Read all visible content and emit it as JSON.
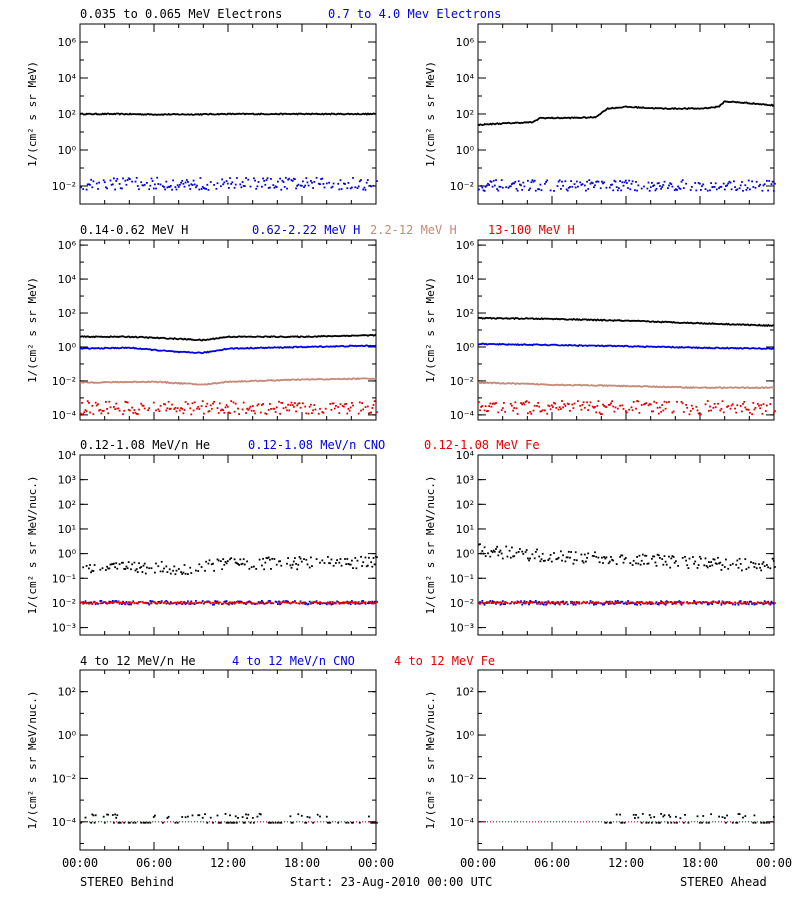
{
  "colors": {
    "black": "#000000",
    "blue": "#0000dd",
    "tan": "#c58a78",
    "red": "#e00000"
  },
  "footer": {
    "left": "STEREO Behind",
    "center": "Start: 23-Aug-2010 00:00 UTC",
    "right": "STEREO Ahead",
    "time_ticks": [
      "00:00",
      "06:00",
      "12:00",
      "18:00",
      "00:00"
    ]
  },
  "rows": [
    {
      "legend": [
        {
          "text": "0.035 to 0.065 MeV Electrons",
          "color": "#000000"
        },
        {
          "text": "0.7 to 4.0 Mev Electrons",
          "color": "#0000dd"
        }
      ],
      "ylabel_left": "1/(cm² s sr MeV)",
      "ylabel_right": "1/(cm² s sr MeV)",
      "y_ticks": [
        "10⁻²",
        "10⁰",
        "10²",
        "10⁴",
        "10⁶"
      ]
    },
    {
      "legend": [
        {
          "text": "0.14-0.62 MeV H",
          "color": "#000000"
        },
        {
          "text": "0.62-2.22 MeV H",
          "color": "#0000dd"
        },
        {
          "text": "2.2-12 MeV H",
          "color": "#c58a78"
        },
        {
          "text": "13-100 MeV H",
          "color": "#e00000"
        }
      ],
      "ylabel_left": "1/(cm² s sr MeV)",
      "ylabel_right": "1/(cm² s sr MeV)",
      "y_ticks": [
        "10⁻⁴",
        "10⁻²",
        "10⁰",
        "10²",
        "10⁴",
        "10⁶"
      ]
    },
    {
      "legend": [
        {
          "text": "0.12-1.08 MeV/n He",
          "color": "#000000"
        },
        {
          "text": "0.12-1.08 MeV/n CNO",
          "color": "#0000dd"
        },
        {
          "text": "0.12-1.08 MeV Fe",
          "color": "#e00000"
        }
      ],
      "ylabel_left": "1/(cm² s sr MeV/nuc.)",
      "ylabel_right": "1/(cm² s sr MeV/nuc.)",
      "y_ticks": [
        "10⁻³",
        "10⁻²",
        "10⁻¹",
        "10⁰",
        "10¹",
        "10²",
        "10³",
        "10⁴"
      ]
    },
    {
      "legend": [
        {
          "text": "4 to 12 MeV/n He",
          "color": "#000000"
        },
        {
          "text": "4 to 12 MeV/n CNO",
          "color": "#0000dd"
        },
        {
          "text": "4 to 12 MeV Fe",
          "color": "#e00000"
        }
      ],
      "ylabel_left": "1/(cm² s sr MeV/nuc.)",
      "ylabel_right": "1/(cm² s sr MeV/nuc.)",
      "y_ticks": [
        "10⁻⁴",
        "10⁻²",
        "10⁰",
        "10²"
      ]
    }
  ],
  "chart_data": [
    {
      "type": "scatter",
      "panel": "electrons-behind",
      "ylog": true,
      "ylim": [
        0.001,
        10000000
      ],
      "xlim": [
        0,
        24
      ],
      "series": [
        {
          "name": "0.035 to 0.065 MeV Electrons",
          "color": "#000000",
          "mode": "line",
          "points": [
            [
              0,
              100
            ],
            [
              3,
              100
            ],
            [
              6,
              95
            ],
            [
              9,
              95
            ],
            [
              12,
              100
            ],
            [
              15,
              100
            ],
            [
              18,
              100
            ],
            [
              21,
              100
            ],
            [
              24,
              100
            ]
          ]
        },
        {
          "name": "0.7 to 4.0 Mev Electrons",
          "color": "#0000dd",
          "mode": "band",
          "points": [
            [
              0,
              0.015
            ],
            [
              6,
              0.015
            ],
            [
              12,
              0.015
            ],
            [
              18,
              0.015
            ],
            [
              24,
              0.015
            ]
          ],
          "spread": 2.2
        }
      ]
    },
    {
      "type": "scatter",
      "panel": "electrons-ahead",
      "ylog": true,
      "ylim": [
        0.001,
        10000000
      ],
      "xlim": [
        0,
        24
      ],
      "series": [
        {
          "name": "0.035 to 0.065 MeV Electrons",
          "color": "#000000",
          "mode": "line",
          "points": [
            [
              0,
              25
            ],
            [
              2,
              30
            ],
            [
              4.5,
              35
            ],
            [
              5,
              60
            ],
            [
              7,
              60
            ],
            [
              9.5,
              65
            ],
            [
              10.5,
              200
            ],
            [
              12,
              250
            ],
            [
              15,
              200
            ],
            [
              18,
              200
            ],
            [
              19.5,
              250
            ],
            [
              20,
              500
            ],
            [
              22,
              400
            ],
            [
              24,
              300
            ]
          ]
        },
        {
          "name": "0.7 to 4.0 Mev Electrons",
          "color": "#0000dd",
          "mode": "band",
          "points": [
            [
              0,
              0.012
            ],
            [
              6,
              0.012
            ],
            [
              12,
              0.012
            ],
            [
              18,
              0.012
            ],
            [
              24,
              0.012
            ]
          ],
          "spread": 2.0
        }
      ]
    },
    {
      "type": "scatter",
      "panel": "protons-behind",
      "ylog": true,
      "ylim": [
        5e-05,
        2000000
      ],
      "xlim": [
        0,
        24
      ],
      "series": [
        {
          "name": "0.14-0.62 MeV H",
          "color": "#000000",
          "mode": "line",
          "points": [
            [
              0,
              4
            ],
            [
              4,
              4
            ],
            [
              8,
              3
            ],
            [
              10,
              2.5
            ],
            [
              12,
              4
            ],
            [
              18,
              4
            ],
            [
              24,
              5
            ]
          ]
        },
        {
          "name": "0.62-2.22 MeV H",
          "color": "#0000dd",
          "mode": "line",
          "points": [
            [
              0,
              0.8
            ],
            [
              4,
              0.9
            ],
            [
              8,
              0.5
            ],
            [
              10,
              0.45
            ],
            [
              12,
              0.8
            ],
            [
              18,
              1
            ],
            [
              24,
              1.2
            ]
          ]
        },
        {
          "name": "2.2-12 MeV H",
          "color": "#c58a78",
          "mode": "line",
          "points": [
            [
              0,
              0.008
            ],
            [
              6,
              0.009
            ],
            [
              10,
              0.006
            ],
            [
              12,
              0.009
            ],
            [
              18,
              0.012
            ],
            [
              24,
              0.014
            ]
          ]
        },
        {
          "name": "13-100 MeV H",
          "color": "#e00000",
          "mode": "band",
          "points": [
            [
              0,
              0.0003
            ],
            [
              12,
              0.0003
            ],
            [
              24,
              0.0003
            ]
          ],
          "spread": 2.5
        }
      ]
    },
    {
      "type": "scatter",
      "panel": "protons-ahead",
      "ylog": true,
      "ylim": [
        5e-05,
        2000000
      ],
      "xlim": [
        0,
        24
      ],
      "series": [
        {
          "name": "0.14-0.62 MeV H",
          "color": "#000000",
          "mode": "line",
          "points": [
            [
              0,
              50
            ],
            [
              6,
              45
            ],
            [
              12,
              35
            ],
            [
              18,
              25
            ],
            [
              24,
              18
            ]
          ]
        },
        {
          "name": "0.62-2.22 MeV H",
          "color": "#0000dd",
          "mode": "line",
          "points": [
            [
              0,
              1.5
            ],
            [
              6,
              1.3
            ],
            [
              12,
              1.1
            ],
            [
              18,
              0.9
            ],
            [
              24,
              0.8
            ]
          ]
        },
        {
          "name": "2.2-12 MeV H",
          "color": "#c58a78",
          "mode": "line",
          "points": [
            [
              0,
              0.008
            ],
            [
              6,
              0.006
            ],
            [
              12,
              0.005
            ],
            [
              18,
              0.004
            ],
            [
              24,
              0.004
            ]
          ]
        },
        {
          "name": "13-100 MeV H",
          "color": "#e00000",
          "mode": "band",
          "points": [
            [
              0,
              0.0003
            ],
            [
              12,
              0.0003
            ],
            [
              24,
              0.0003
            ]
          ],
          "spread": 2.5
        }
      ]
    },
    {
      "type": "scatter",
      "panel": "heavy-low-behind",
      "ylog": true,
      "ylim": [
        0.0005,
        10000
      ],
      "xlim": [
        0,
        24
      ],
      "series": [
        {
          "name": "0.12-1.08 MeV/n He",
          "color": "#000000",
          "mode": "band",
          "points": [
            [
              0,
              0.3
            ],
            [
              6,
              0.3
            ],
            [
              9,
              0.25
            ],
            [
              12,
              0.45
            ],
            [
              18,
              0.45
            ],
            [
              24,
              0.5
            ]
          ],
          "spread": 1.8
        },
        {
          "name": "0.12-1.08 MeV/n CNO",
          "color": "#0000dd",
          "mode": "band",
          "points": [
            [
              0,
              0.011
            ],
            [
              12,
              0.011
            ],
            [
              24,
              0.011
            ]
          ],
          "spread": 1.2
        },
        {
          "name": "0.12-1.08 MeV Fe",
          "color": "#e00000",
          "mode": "band",
          "points": [
            [
              0,
              0.011
            ],
            [
              12,
              0.011
            ],
            [
              24,
              0.011
            ]
          ],
          "spread": 1.1
        }
      ]
    },
    {
      "type": "scatter",
      "panel": "heavy-low-ahead",
      "ylog": true,
      "ylim": [
        0.0005,
        10000
      ],
      "xlim": [
        0,
        24
      ],
      "series": [
        {
          "name": "0.12-1.08 MeV/n He",
          "color": "#000000",
          "mode": "band",
          "points": [
            [
              0,
              1.5
            ],
            [
              4,
              1
            ],
            [
              8,
              0.7
            ],
            [
              12,
              0.7
            ],
            [
              16,
              0.5
            ],
            [
              20,
              0.4
            ],
            [
              24,
              0.4
            ]
          ],
          "spread": 1.8
        },
        {
          "name": "0.12-1.08 MeV/n CNO",
          "color": "#0000dd",
          "mode": "band",
          "points": [
            [
              0,
              0.011
            ],
            [
              12,
              0.011
            ],
            [
              24,
              0.011
            ]
          ],
          "spread": 1.2
        },
        {
          "name": "0.12-1.08 MeV Fe",
          "color": "#e00000",
          "mode": "band",
          "points": [
            [
              0,
              0.011
            ],
            [
              12,
              0.011
            ],
            [
              24,
              0.011
            ]
          ],
          "spread": 1.1
        }
      ]
    },
    {
      "type": "scatter",
      "panel": "heavy-high-behind",
      "ylog": true,
      "ylim": [
        5e-06,
        1000
      ],
      "xlim": [
        0,
        24
      ],
      "series": [
        {
          "name": "4 to 12 MeV/n He",
          "color": "#000000",
          "mode": "sparse",
          "points": [
            [
              0,
              0.0001
            ],
            [
              24,
              0.0001
            ]
          ],
          "spread": 1.6
        },
        {
          "name": "4 to 12 MeV/n CNO",
          "color": "#0000dd",
          "mode": "baseline",
          "points": [
            [
              0,
              0.0001
            ],
            [
              24,
              0.0001
            ]
          ]
        },
        {
          "name": "4 to 12 MeV Fe",
          "color": "#e00000",
          "mode": "baseline",
          "points": [
            [
              0,
              0.0001
            ],
            [
              24,
              0.0001
            ]
          ]
        }
      ]
    },
    {
      "type": "scatter",
      "panel": "heavy-high-ahead",
      "ylog": true,
      "ylim": [
        5e-06,
        1000
      ],
      "xlim": [
        0,
        24
      ],
      "series": [
        {
          "name": "4 to 12 MeV/n He",
          "color": "#000000",
          "mode": "sparse",
          "points": [
            [
              10,
              0.0001
            ],
            [
              24,
              0.0001
            ]
          ],
          "spread": 1.6
        },
        {
          "name": "4 to 12 MeV/n CNO",
          "color": "#0000dd",
          "mode": "baseline",
          "points": [
            [
              0,
              0.0001
            ],
            [
              24,
              0.0001
            ]
          ]
        },
        {
          "name": "4 to 12 MeV Fe",
          "color": "#e00000",
          "mode": "baseline",
          "points": [
            [
              0,
              0.0001
            ],
            [
              24,
              0.0001
            ]
          ]
        }
      ]
    }
  ]
}
